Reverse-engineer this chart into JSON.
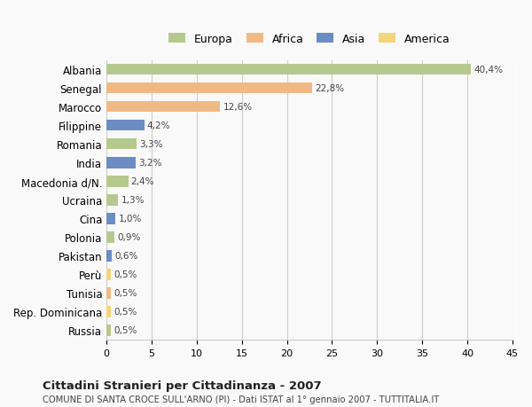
{
  "categories": [
    "Albania",
    "Senegal",
    "Marocco",
    "Filippine",
    "Romania",
    "India",
    "Macedonia d/N.",
    "Ucraina",
    "Cina",
    "Polonia",
    "Pakistan",
    "Perù",
    "Tunisia",
    "Rep. Dominicana",
    "Russia"
  ],
  "values": [
    40.4,
    22.8,
    12.6,
    4.2,
    3.3,
    3.2,
    2.4,
    1.3,
    1.0,
    0.9,
    0.6,
    0.5,
    0.5,
    0.5,
    0.5
  ],
  "labels": [
    "40,4%",
    "22,8%",
    "12,6%",
    "4,2%",
    "3,3%",
    "3,2%",
    "2,4%",
    "1,3%",
    "1,0%",
    "0,9%",
    "0,6%",
    "0,5%",
    "0,5%",
    "0,5%",
    "0,5%"
  ],
  "colors": [
    "#b5c98e",
    "#f0b983",
    "#f0b983",
    "#6b8dc4",
    "#b5c98e",
    "#6b8dc4",
    "#b5c98e",
    "#b5c98e",
    "#6b8dc4",
    "#b5c98e",
    "#6b8dc4",
    "#f5d57a",
    "#f0b983",
    "#f5d57a",
    "#b5c98e"
  ],
  "legend_labels": [
    "Europa",
    "Africa",
    "Asia",
    "America"
  ],
  "legend_colors": [
    "#b5c98e",
    "#f0b983",
    "#6b8dc4",
    "#f5d57a"
  ],
  "title": "Cittadini Stranieri per Cittadinanza - 2007",
  "subtitle": "COMUNE DI SANTA CROCE SULL'ARNO (PI) - Dati ISTAT al 1° gennaio 2007 - TUTTITALIA.IT",
  "xlim": [
    0,
    45
  ],
  "xticks": [
    0,
    5,
    10,
    15,
    20,
    25,
    30,
    35,
    40,
    45
  ],
  "background_color": "#f9f9f9",
  "grid_color": "#cccccc"
}
